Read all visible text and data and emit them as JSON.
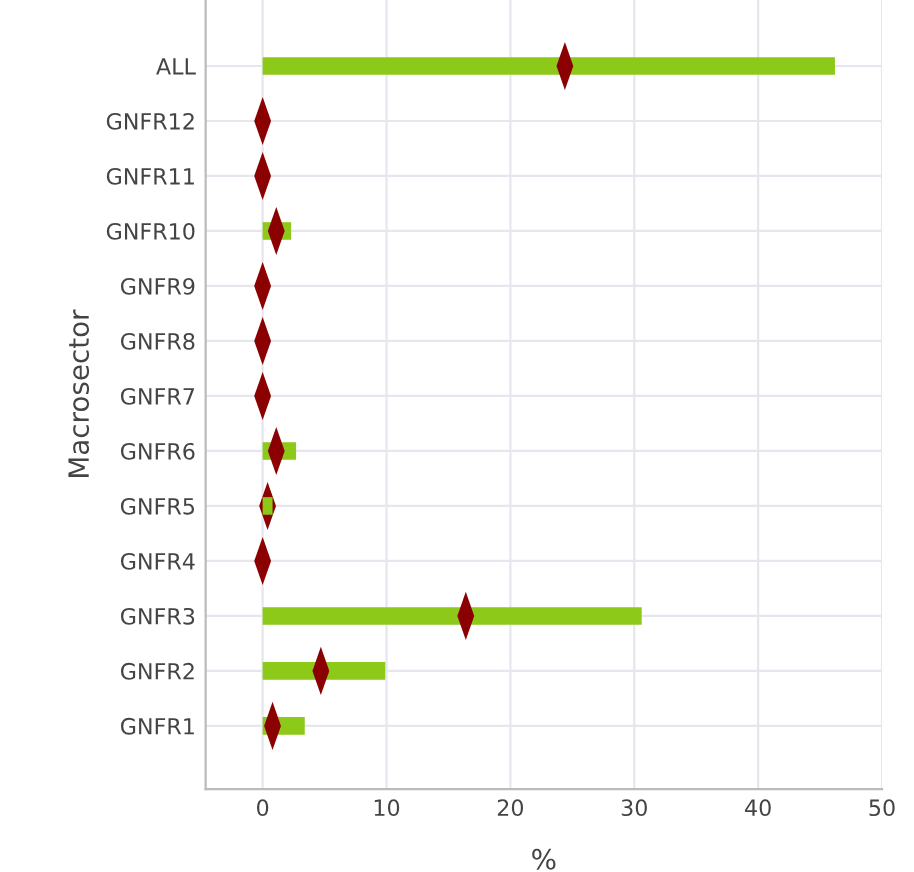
{
  "chart_data": {
    "type": "bar",
    "orientation": "horizontal",
    "xlabel": "%",
    "ylabel": "Macrosector",
    "categories": [
      "ALL",
      "GNFR12",
      "GNFR11",
      "GNFR10",
      "GNFR9",
      "GNFR8",
      "GNFR7",
      "GNFR6",
      "GNFR5",
      "GNFR4",
      "GNFR3",
      "GNFR2",
      "GNFR1"
    ],
    "series": [
      {
        "color": "#8dc919",
        "values": [
          46.2,
          0,
          0,
          2.3,
          0,
          0,
          0,
          2.7,
          0.8,
          0,
          30.6,
          9.9,
          3.4
        ]
      },
      {
        "type": "scatter",
        "color": "#8b0000",
        "marker": "diamond",
        "values": [
          24.4,
          0,
          0,
          1.1,
          0,
          0,
          0,
          1.1,
          0.4,
          0,
          16.4,
          4.7,
          0.8
        ]
      }
    ],
    "xlim": [
      -4.6,
      50
    ],
    "xticks": [
      0,
      10,
      20,
      30,
      40,
      50
    ],
    "grid": true,
    "legend": false
  }
}
